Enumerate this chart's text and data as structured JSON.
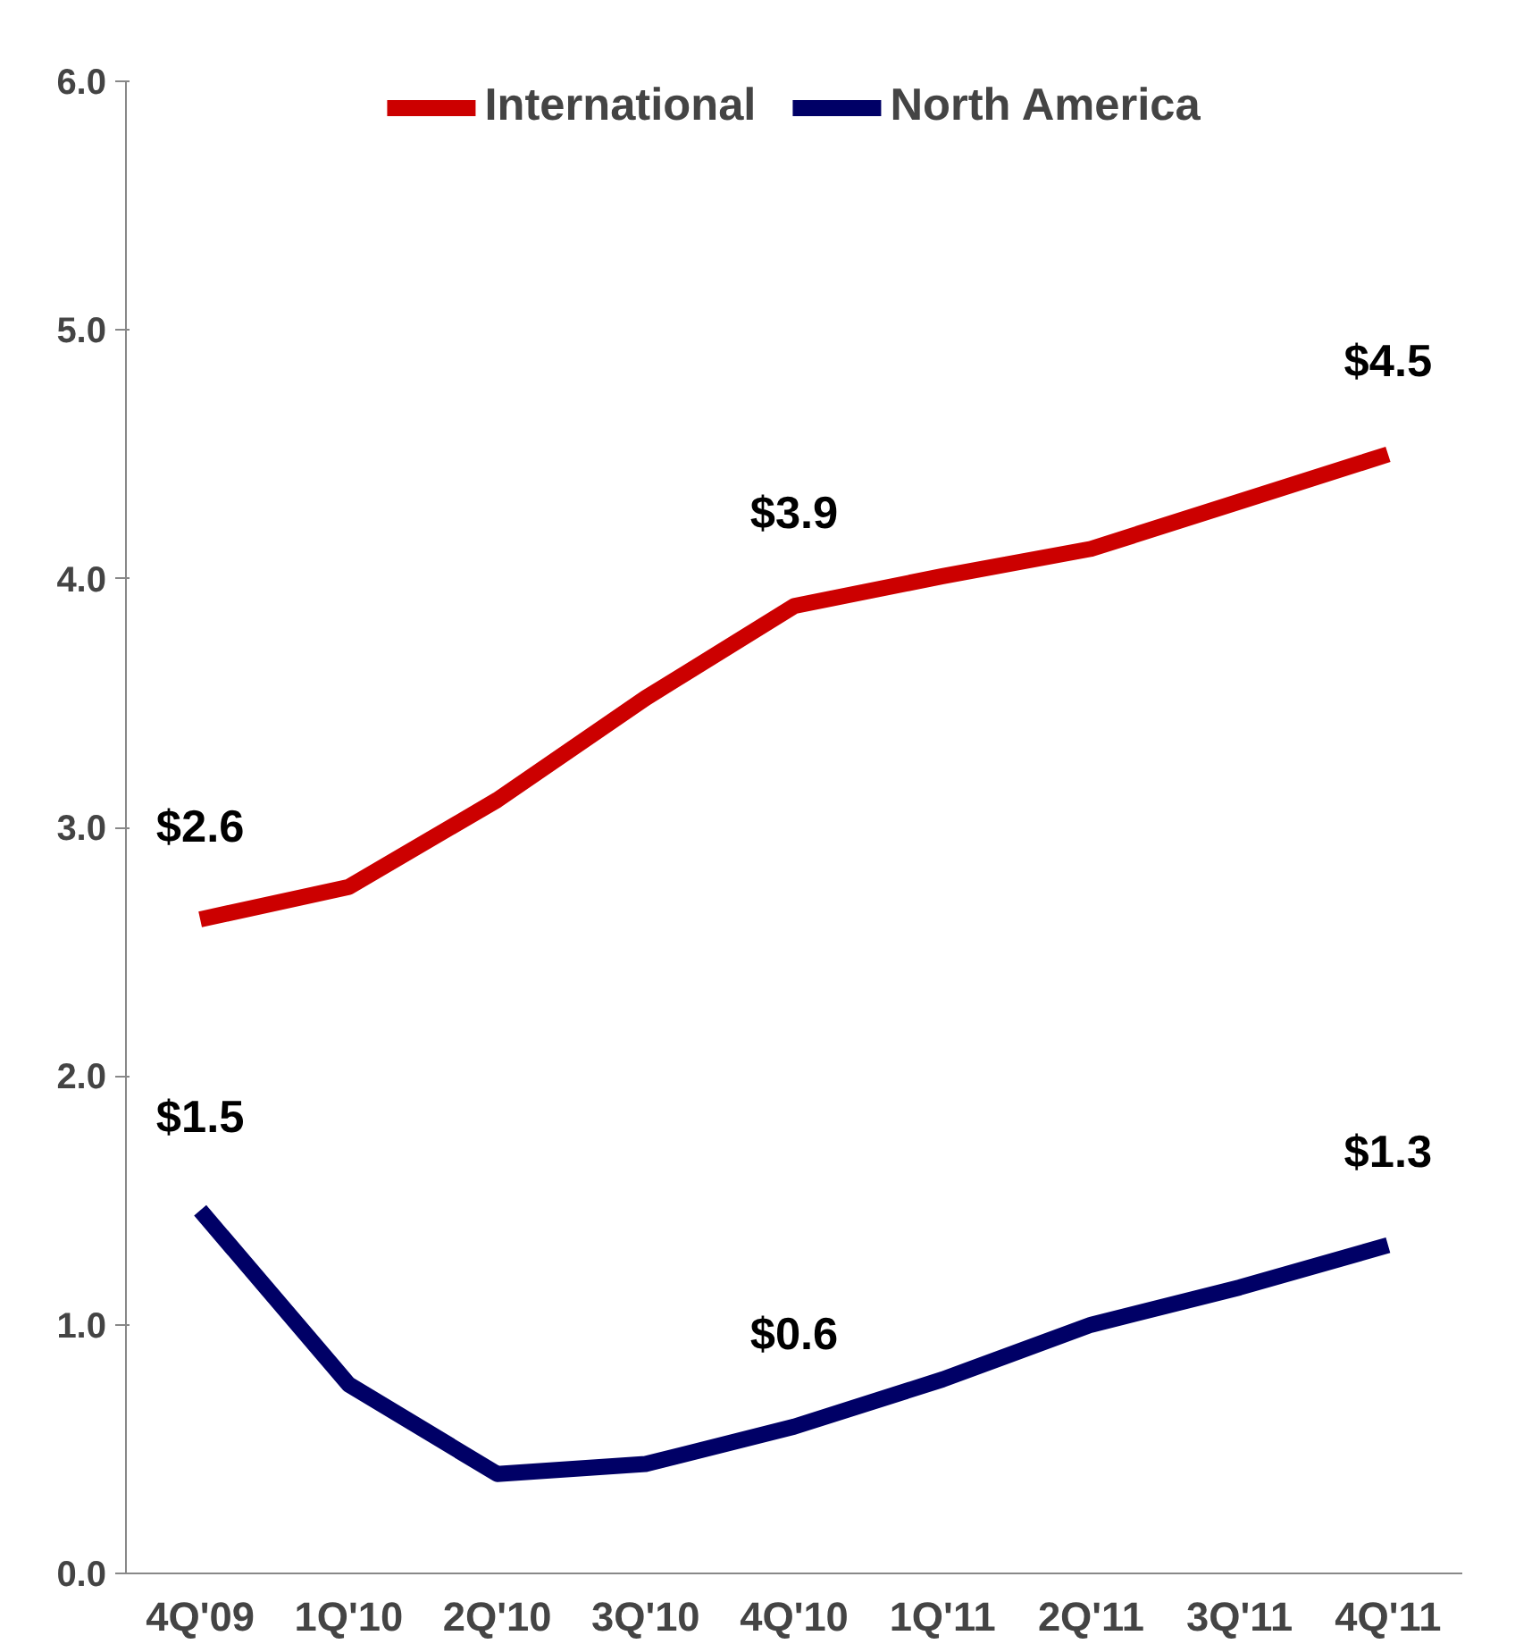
{
  "chart_data": {
    "type": "line",
    "categories": [
      "4Q'09",
      "1Q'10",
      "2Q'10",
      "3Q'10",
      "4Q'10",
      "1Q'11",
      "2Q'11",
      "3Q'11",
      "4Q'11"
    ],
    "series": [
      {
        "name": "International",
        "color": "#cc0000",
        "values": [
          2.63,
          2.76,
          3.11,
          3.52,
          3.89,
          4.01,
          4.12,
          4.31,
          4.5
        ],
        "value_labels": [
          "$2.6",
          null,
          null,
          null,
          "$3.9",
          null,
          null,
          null,
          "$4.5"
        ]
      },
      {
        "name": "North America",
        "color": "#000066",
        "values": [
          1.46,
          0.76,
          0.4,
          0.44,
          0.59,
          0.78,
          1.0,
          1.15,
          1.32
        ],
        "value_labels": [
          "$1.5",
          null,
          null,
          null,
          "$0.6",
          null,
          null,
          null,
          "$1.3"
        ]
      }
    ],
    "ylim": [
      0,
      6
    ],
    "yticks": [
      {
        "value": 0,
        "label": "0.0"
      },
      {
        "value": 1,
        "label": "1.0"
      },
      {
        "value": 2,
        "label": "2.0"
      },
      {
        "value": 3,
        "label": "3.0"
      },
      {
        "value": 4,
        "label": "4.0"
      },
      {
        "value": 5,
        "label": "5.0"
      },
      {
        "value": 6,
        "label": "6.0"
      }
    ],
    "grid": false,
    "legend": "top",
    "marker": "none",
    "line_style": "solid"
  }
}
